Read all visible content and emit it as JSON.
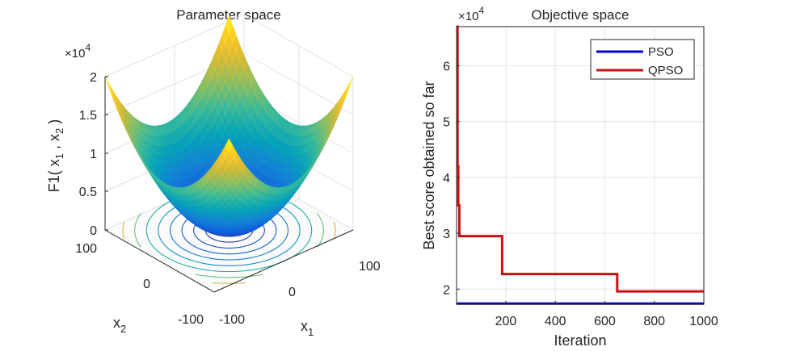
{
  "left_chart": {
    "title": "Parameter space",
    "zlabel_main": "F1( x",
    "zlabel_sub1": "1",
    "zlabel_comma": " , x",
    "zlabel_sub2": "2",
    "zlabel_close": " )",
    "exponent_base": "×10",
    "exponent_power": "4",
    "z_ticks": [
      "0",
      "0.5",
      "1",
      "1.5",
      "2"
    ],
    "x1_ticks": [
      "-100",
      "0",
      "100"
    ],
    "x2_ticks": [
      "-100",
      "0",
      "100"
    ],
    "x1_label": "x",
    "x1_label_sub": "1",
    "x2_label": "x",
    "x2_label_sub": "2"
  },
  "right_chart": {
    "title": "Objective space",
    "xlabel": "Iteration",
    "ylabel": "Best score obtained so far",
    "exponent_base": "×10",
    "exponent_power": "4",
    "legend_pso": "PSO",
    "legend_qpso": "QPSO"
  },
  "chart_data": [
    {
      "type": "surface",
      "title": "Parameter space",
      "function": "F1(x1,x2) = x1^2 + x2^2",
      "x1_range": [
        -100,
        100
      ],
      "x2_range": [
        -100,
        100
      ],
      "zlim": [
        0,
        20000
      ],
      "z_ticks": [
        0,
        5000,
        10000,
        15000,
        20000
      ],
      "colormap": "parula",
      "contour_levels": 10,
      "grid": true
    },
    {
      "type": "line",
      "title": "Objective space",
      "xlabel": "Iteration",
      "ylabel": "Best score obtained so far",
      "xlim": [
        1,
        1000
      ],
      "ylim": [
        17300,
        67000
      ],
      "x_ticks": [
        200,
        400,
        600,
        800,
        1000
      ],
      "y_ticks": [
        20000,
        30000,
        40000,
        50000,
        60000
      ],
      "grid": true,
      "legend": "top-right",
      "series": [
        {
          "name": "PSO",
          "color": "#0000cc",
          "x": [
            1,
            1000
          ],
          "y": [
            17400,
            17400
          ]
        },
        {
          "name": "QPSO",
          "color": "#cc1111",
          "x": [
            1,
            5,
            5,
            8,
            8,
            12,
            12,
            40,
            40,
            185,
            185,
            650,
            650,
            1000
          ],
          "y": [
            67000,
            67000,
            42000,
            42000,
            35000,
            35000,
            29500,
            29500,
            29500,
            29500,
            22700,
            22700,
            19600,
            19600
          ]
        }
      ]
    }
  ]
}
